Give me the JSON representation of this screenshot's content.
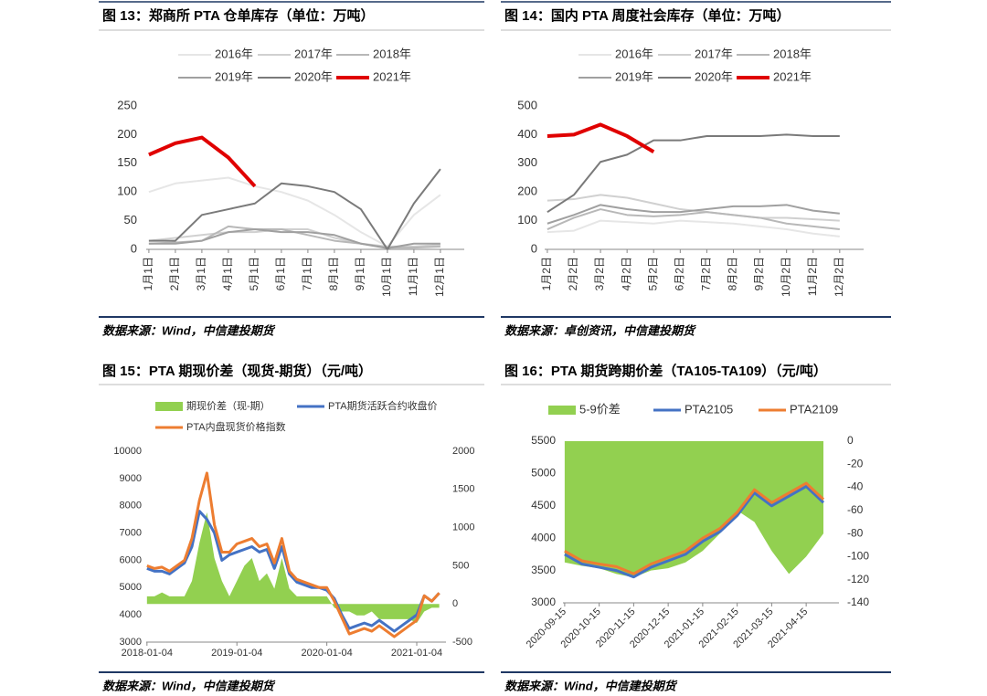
{
  "chart_data": [
    {
      "type": "line",
      "title": "图 13：郑商所 PTA 仓单库存（单位：万吨）",
      "source": "数据来源：Wind，中信建投期货",
      "categories": [
        "1月1日",
        "2月1日",
        "3月1日",
        "4月1日",
        "5月1日",
        "6月1日",
        "7月1日",
        "8月1日",
        "9月1日",
        "10月1日",
        "11月1日",
        "12月1日"
      ],
      "ylim": [
        0,
        250
      ],
      "yticks": [
        0,
        50,
        100,
        150,
        200,
        250
      ],
      "series": [
        {
          "name": "2016年",
          "color": "#e6e6e6",
          "width": 2,
          "values": [
            100,
            115,
            120,
            125,
            110,
            100,
            85,
            60,
            30,
            5,
            60,
            95
          ]
        },
        {
          "name": "2017年",
          "color": "#d0d0d0",
          "width": 2,
          "values": [
            15,
            20,
            25,
            30,
            30,
            35,
            35,
            20,
            10,
            5,
            5,
            8
          ]
        },
        {
          "name": "2018年",
          "color": "#b8b8b8",
          "width": 2,
          "values": [
            10,
            12,
            15,
            40,
            35,
            35,
            25,
            15,
            10,
            3,
            3,
            5
          ]
        },
        {
          "name": "2019年",
          "color": "#a0a0a0",
          "width": 2,
          "values": [
            10,
            10,
            15,
            30,
            35,
            30,
            30,
            25,
            10,
            2,
            10,
            10
          ]
        },
        {
          "name": "2020年",
          "color": "#7a7a7a",
          "width": 2,
          "values": [
            15,
            15,
            60,
            70,
            80,
            115,
            110,
            100,
            70,
            0,
            80,
            140
          ]
        },
        {
          "name": "2021年",
          "color": "#e00000",
          "width": 4,
          "values": [
            165,
            185,
            195,
            160,
            110,
            null,
            null,
            null,
            null,
            null,
            null,
            null
          ]
        }
      ]
    },
    {
      "type": "line",
      "title": "图 14：国内 PTA 周度社会库存（单位：万吨）",
      "source": "数据来源：卓创资讯，中信建投期货",
      "categories": [
        "1月2日",
        "2月2日",
        "3月2日",
        "4月2日",
        "5月2日",
        "6月2日",
        "7月2日",
        "8月2日",
        "9月2日",
        "10月2日",
        "11月2日",
        "12月2日"
      ],
      "ylim": [
        0,
        500
      ],
      "yticks": [
        0,
        100,
        200,
        300,
        400,
        500
      ],
      "series": [
        {
          "name": "2016年",
          "color": "#e6e6e6",
          "width": 2,
          "values": [
            60,
            65,
            100,
            95,
            90,
            100,
            95,
            90,
            80,
            70,
            55,
            45
          ]
        },
        {
          "name": "2017年",
          "color": "#d0d0d0",
          "width": 2,
          "values": [
            170,
            175,
            190,
            180,
            160,
            140,
            130,
            120,
            110,
            110,
            105,
            100
          ]
        },
        {
          "name": "2018年",
          "color": "#b8b8b8",
          "width": 2,
          "values": [
            70,
            110,
            140,
            120,
            115,
            120,
            130,
            120,
            110,
            90,
            80,
            70
          ]
        },
        {
          "name": "2019年",
          "color": "#a0a0a0",
          "width": 2,
          "values": [
            90,
            120,
            155,
            140,
            130,
            130,
            140,
            150,
            150,
            155,
            135,
            125
          ]
        },
        {
          "name": "2020年",
          "color": "#7a7a7a",
          "width": 2,
          "values": [
            130,
            190,
            305,
            330,
            380,
            380,
            395,
            395,
            395,
            400,
            395,
            395
          ]
        },
        {
          "name": "2021年",
          "color": "#e00000",
          "width": 4,
          "values": [
            395,
            400,
            435,
            395,
            340,
            null,
            null,
            null,
            null,
            null,
            null,
            null
          ]
        }
      ]
    },
    {
      "type": "combo",
      "title": "图 15：PTA 期现价差（现货-期货）（元/吨）",
      "source": "数据来源：Wind，中信建投期货",
      "categories": [
        "2018-01-04",
        null,
        null,
        null,
        null,
        null,
        null,
        null,
        null,
        null,
        null,
        null,
        "2019-01-04",
        null,
        null,
        null,
        null,
        null,
        null,
        null,
        null,
        null,
        null,
        null,
        "2020-01-04",
        null,
        null,
        null,
        null,
        null,
        null,
        null,
        null,
        null,
        null,
        null,
        "2021-01-04",
        null,
        null,
        null
      ],
      "ylim": [
        3000,
        10000
      ],
      "yticks": [
        3000,
        4000,
        5000,
        6000,
        7000,
        8000,
        9000,
        10000
      ],
      "y2lim": [
        -500,
        2000
      ],
      "y2ticks": [
        -500,
        0,
        500,
        1000,
        1500,
        2000
      ],
      "series": [
        {
          "name": "期现价差（现-期）",
          "type": "area",
          "axis": "y2",
          "color": "#92d050",
          "values": [
            100,
            100,
            150,
            100,
            100,
            100,
            300,
            800,
            1200,
            600,
            300,
            100,
            300,
            500,
            600,
            300,
            400,
            200,
            600,
            200,
            100,
            100,
            100,
            100,
            100,
            -50,
            -100,
            -100,
            -150,
            -150,
            -100,
            -200,
            -200,
            -200,
            -200,
            -200,
            -250,
            -100,
            -50,
            -50
          ]
        },
        {
          "name": "PTA期货活跃合约收盘价",
          "type": "line",
          "color": "#4472c4",
          "width": 3,
          "values": [
            5700,
            5600,
            5600,
            5500,
            5700,
            5900,
            6500,
            7800,
            7500,
            7000,
            6000,
            6200,
            6300,
            6400,
            6500,
            6300,
            6400,
            5700,
            6500,
            5500,
            5200,
            5100,
            5000,
            5000,
            4900,
            4600,
            4000,
            3500,
            3600,
            3700,
            3600,
            3800,
            3600,
            3400,
            3600,
            3800,
            4000,
            4700,
            4500,
            4800
          ]
        },
        {
          "name": "PTA内盘现货价格指数",
          "type": "line",
          "color": "#ed7d31",
          "width": 3,
          "values": [
            5800,
            5700,
            5750,
            5600,
            5800,
            6000,
            6800,
            8200,
            9200,
            7300,
            6300,
            6300,
            6600,
            6700,
            6800,
            6500,
            6600,
            5900,
            6800,
            5600,
            5300,
            5200,
            5100,
            5000,
            5000,
            4500,
            3900,
            3300,
            3400,
            3500,
            3400,
            3600,
            3400,
            3200,
            3400,
            3600,
            3800,
            4700,
            4500,
            4800
          ]
        }
      ]
    },
    {
      "type": "combo",
      "title": "图 16：PTA 期货跨期价差（TA105-TA109）（元/吨）",
      "source": "数据来源：Wind，中信建投期货",
      "categories": [
        "2020-09-15",
        null,
        "2020-10-15",
        null,
        "2020-11-15",
        null,
        "2020-12-15",
        null,
        "2021-01-15",
        null,
        "2021-02-15",
        null,
        "2021-03-15",
        null,
        "2021-04-15",
        null
      ],
      "ylim": [
        3000,
        5500
      ],
      "yticks": [
        3000,
        3500,
        4000,
        4500,
        5000,
        5500
      ],
      "y2lim": [
        -140,
        0
      ],
      "y2ticks": [
        -140,
        -120,
        -100,
        -80,
        -60,
        -40,
        -20,
        0
      ],
      "series": [
        {
          "name": "5-9价差",
          "type": "area",
          "axis": "y2",
          "color": "#92d050",
          "values": [
            -105,
            -108,
            -110,
            -115,
            -118,
            -112,
            -110,
            -105,
            -95,
            -80,
            -60,
            -70,
            -95,
            -115,
            -100,
            -80
          ]
        },
        {
          "name": "PTA2105",
          "type": "line",
          "color": "#4472c4",
          "width": 3,
          "values": [
            3750,
            3600,
            3550,
            3500,
            3400,
            3550,
            3650,
            3750,
            3950,
            4100,
            4350,
            4700,
            4500,
            4650,
            4800,
            4550
          ]
        },
        {
          "name": "PTA2109",
          "type": "line",
          "color": "#ed7d31",
          "width": 3,
          "values": [
            3800,
            3650,
            3600,
            3560,
            3450,
            3600,
            3700,
            3800,
            4000,
            4150,
            4400,
            4750,
            4550,
            4700,
            4850,
            4600
          ]
        }
      ]
    }
  ]
}
